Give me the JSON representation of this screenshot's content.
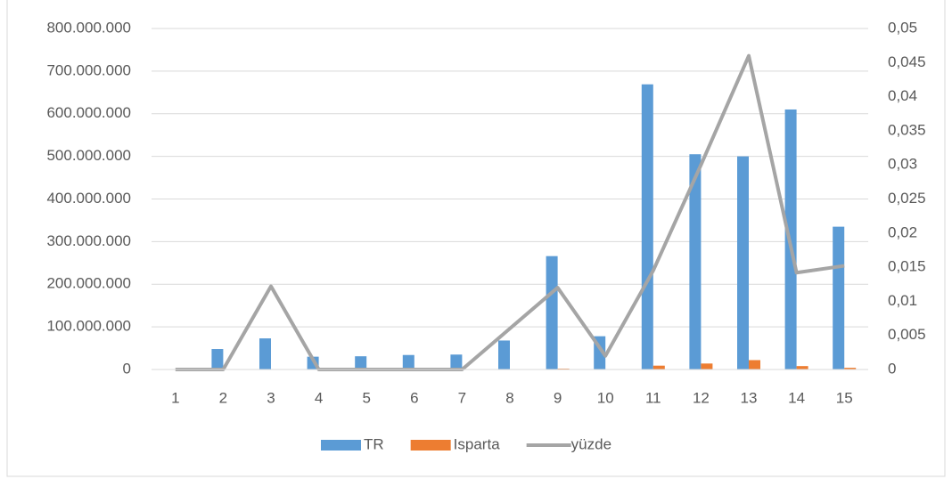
{
  "chart_data": {
    "type": "bar",
    "categories": [
      "1",
      "2",
      "3",
      "4",
      "5",
      "6",
      "7",
      "8",
      "9",
      "10",
      "11",
      "12",
      "13",
      "14",
      "15"
    ],
    "series": [
      {
        "name": "TR",
        "color": "#5b9bd5",
        "values": [
          0,
          48000000,
          73000000,
          30000000,
          31000000,
          34000000,
          35000000,
          68000000,
          266000000,
          78000000,
          669000000,
          505000000,
          500000000,
          610000000,
          335000000
        ]
      },
      {
        "name": "Isparta",
        "color": "#ed7d31",
        "values": [
          0,
          0,
          0,
          0,
          0,
          0,
          0,
          0,
          2000000,
          0,
          9000000,
          14000000,
          22000000,
          8000000,
          4000000
        ]
      },
      {
        "name": "yüzde",
        "color": "#a5a5a5",
        "type": "line",
        "axis": "y2",
        "values": [
          0,
          0,
          0.0122,
          0,
          0,
          0,
          0,
          0.006,
          0.012,
          0.002,
          0.0145,
          0.03,
          0.046,
          0.0142,
          0.0152
        ]
      }
    ],
    "ylim": [
      0,
      800000000
    ],
    "yticks": [
      0,
      {
        "value": 100000000,
        "label": "100.000.000"
      },
      {
        "value": 200000000,
        "label": "200.000.000"
      },
      {
        "value": 300000000,
        "label": "300.000.000"
      },
      {
        "value": 400000000,
        "label": "400.000.000"
      },
      {
        "value": 500000000,
        "label": "500.000.000"
      },
      {
        "value": 600000000,
        "label": "600.000.000"
      },
      {
        "value": 700000000,
        "label": "700.000.000"
      },
      {
        "value": 800000000,
        "label": "800.000.000"
      }
    ],
    "y2lim": [
      0,
      0.05
    ],
    "y2ticks": [
      0,
      {
        "value": 0.005,
        "label": "0,005"
      },
      {
        "value": 0.01,
        "label": "0,01"
      },
      {
        "value": 0.015,
        "label": "0,015"
      },
      {
        "value": 0.02,
        "label": "0,02"
      },
      {
        "value": 0.025,
        "label": "0,025"
      },
      {
        "value": 0.03,
        "label": "0,03"
      },
      {
        "value": 0.035,
        "label": "0,035"
      },
      {
        "value": 0.04,
        "label": "0,04"
      },
      {
        "value": 0.045,
        "label": "0,045"
      },
      {
        "value": 0.05,
        "label": "0,05"
      }
    ],
    "grid": true,
    "legend": "bottom"
  }
}
